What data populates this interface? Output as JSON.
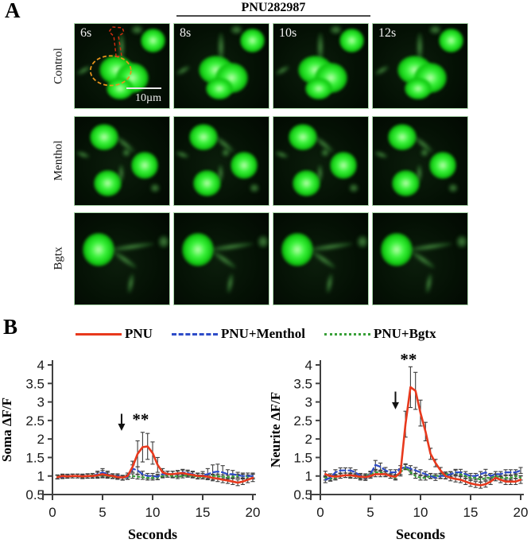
{
  "panel_a": {
    "label": "A",
    "header": "PNU282987",
    "row_labels": [
      "Control",
      "Menthol",
      "Bgtx"
    ],
    "time_labels": [
      "6s",
      "8s",
      "10s",
      "12s"
    ],
    "scale_bar_label": "10µm"
  },
  "panel_b": {
    "label": "B",
    "legend": [
      {
        "label": "PNU",
        "color": "#e8391d",
        "dash": "solid"
      },
      {
        "label": "PNU+Menthol",
        "color": "#2e4cc8",
        "dash": "dashed"
      },
      {
        "label": "PNU+Bgtx",
        "color": "#38a038",
        "dash": "dotted"
      }
    ]
  },
  "colors": {
    "error_bar": "#3c3c3c",
    "axis": "#404040",
    "annotation": "#111111"
  },
  "chart_data": [
    {
      "type": "line",
      "title": "",
      "ylabel": "Soma ΔF/F",
      "xlabel": "Seconds",
      "xlim": [
        0,
        20
      ],
      "ylim": [
        0.5,
        4
      ],
      "xticks": [
        0,
        5,
        10,
        15,
        20
      ],
      "yticks": [
        0.5,
        1,
        1.5,
        2,
        2.5,
        3,
        3.5,
        4
      ],
      "grid": false,
      "legend_position": "top",
      "annotation": {
        "arrow_x": 6.9,
        "arrow_from": 2.68,
        "arrow_to": 2.22,
        "sig": "**",
        "sig_x": 8.8,
        "sig_y": 2.38
      },
      "x": [
        0.5,
        1,
        1.5,
        2,
        2.5,
        3,
        3.5,
        4,
        4.5,
        5,
        5.5,
        6,
        6.5,
        7,
        7.5,
        8,
        8.5,
        9,
        9.5,
        10,
        10.5,
        11,
        11.5,
        12,
        12.5,
        13,
        13.5,
        14,
        14.5,
        15,
        15.5,
        16,
        16.5,
        17,
        17.5,
        18,
        18.5,
        19,
        19.5,
        20
      ],
      "series": [
        {
          "name": "PNU",
          "color": "#e8391d",
          "dash": "solid",
          "values": [
            0.97,
            1.0,
            0.99,
            1.0,
            1.0,
            0.99,
            1.0,
            1.0,
            1.02,
            1.05,
            1.02,
            1.0,
            0.97,
            0.96,
            1.0,
            1.25,
            1.6,
            1.78,
            1.8,
            1.62,
            1.3,
            1.1,
            1.05,
            1.05,
            1.07,
            1.08,
            1.05,
            1.03,
            1.0,
            1.0,
            0.98,
            0.95,
            0.93,
            0.9,
            0.88,
            0.85,
            0.82,
            0.85,
            0.9,
            0.95
          ],
          "errors": [
            0.05,
            0.05,
            0.05,
            0.05,
            0.05,
            0.06,
            0.06,
            0.06,
            0.08,
            0.1,
            0.08,
            0.06,
            0.06,
            0.06,
            0.08,
            0.15,
            0.35,
            0.4,
            0.35,
            0.3,
            0.2,
            0.1,
            0.08,
            0.08,
            0.08,
            0.08,
            0.08,
            0.08,
            0.07,
            0.07,
            0.07,
            0.08,
            0.08,
            0.08,
            0.08,
            0.08,
            0.08,
            0.08,
            0.08,
            0.1
          ]
        },
        {
          "name": "PNU+Menthol",
          "color": "#2e4cc8",
          "dash": "dashed",
          "values": [
            0.97,
            0.98,
            1.0,
            1.0,
            1.0,
            1.0,
            1.0,
            1.0,
            1.05,
            1.1,
            1.05,
            1.0,
            1.0,
            0.95,
            0.97,
            1.2,
            1.15,
            1.05,
            1.0,
            1.0,
            0.98,
            1.05,
            1.05,
            1.05,
            1.05,
            1.1,
            1.08,
            1.05,
            1.0,
            1.02,
            1.05,
            1.1,
            1.12,
            1.1,
            1.05,
            1.05,
            1.02,
            1.0,
            1.0,
            1.0
          ],
          "errors": [
            0.05,
            0.05,
            0.05,
            0.05,
            0.05,
            0.05,
            0.06,
            0.06,
            0.08,
            0.1,
            0.08,
            0.06,
            0.06,
            0.06,
            0.06,
            0.1,
            0.1,
            0.08,
            0.07,
            0.07,
            0.07,
            0.08,
            0.08,
            0.08,
            0.08,
            0.08,
            0.08,
            0.08,
            0.08,
            0.1,
            0.15,
            0.2,
            0.2,
            0.18,
            0.12,
            0.1,
            0.08,
            0.08,
            0.08,
            0.08
          ]
        },
        {
          "name": "PNU+Bgtx",
          "color": "#38a038",
          "dash": "dotted",
          "values": [
            0.98,
            1.0,
            0.99,
            1.0,
            1.0,
            0.98,
            1.0,
            1.02,
            1.0,
            1.03,
            1.0,
            0.98,
            0.97,
            0.95,
            0.97,
            1.0,
            0.98,
            0.97,
            0.95,
            0.95,
            0.96,
            1.0,
            1.02,
            1.0,
            0.98,
            1.0,
            1.02,
            1.0,
            0.98,
            0.97,
            0.98,
            1.0,
            1.0,
            0.98,
            0.97,
            0.98,
            1.0,
            1.0,
            0.98,
            1.0
          ],
          "errors": [
            0.05,
            0.05,
            0.05,
            0.05,
            0.05,
            0.05,
            0.05,
            0.05,
            0.05,
            0.06,
            0.05,
            0.05,
            0.05,
            0.06,
            0.06,
            0.06,
            0.06,
            0.06,
            0.06,
            0.06,
            0.06,
            0.05,
            0.05,
            0.05,
            0.05,
            0.05,
            0.05,
            0.05,
            0.05,
            0.05,
            0.05,
            0.05,
            0.05,
            0.05,
            0.05,
            0.05,
            0.05,
            0.05,
            0.05,
            0.05
          ]
        }
      ]
    },
    {
      "type": "line",
      "title": "",
      "ylabel": "Neurite ΔF/F",
      "xlabel": "Seconds",
      "xlim": [
        0,
        20
      ],
      "ylim": [
        0.5,
        4
      ],
      "xticks": [
        0,
        5,
        10,
        15,
        20
      ],
      "yticks": [
        0.5,
        1,
        1.5,
        2,
        2.5,
        3,
        3.5,
        4
      ],
      "grid": false,
      "legend_position": "top",
      "annotation": {
        "arrow_x": 7.5,
        "arrow_from": 3.28,
        "arrow_to": 2.8,
        "sig": "**",
        "sig_x": 8.8,
        "sig_y": 4.0
      },
      "x": [
        0.5,
        1,
        1.5,
        2,
        2.5,
        3,
        3.5,
        4,
        4.5,
        5,
        5.5,
        6,
        6.5,
        7,
        7.5,
        8,
        8.5,
        9,
        9.5,
        10,
        10.5,
        11,
        11.5,
        12,
        12.5,
        13,
        13.5,
        14,
        14.5,
        15,
        15.5,
        16,
        16.5,
        17,
        17.5,
        18,
        18.5,
        19,
        19.5,
        20
      ],
      "series": [
        {
          "name": "PNU",
          "color": "#e8391d",
          "dash": "solid",
          "values": [
            1.05,
            1.0,
            0.98,
            1.0,
            1.02,
            1.02,
            1.0,
            0.98,
            0.97,
            1.0,
            1.05,
            1.05,
            1.05,
            1.0,
            0.98,
            1.1,
            2.4,
            3.4,
            3.3,
            2.7,
            2.2,
            1.6,
            1.35,
            1.15,
            1.0,
            0.95,
            0.92,
            0.9,
            0.85,
            0.8,
            0.77,
            0.75,
            0.78,
            0.85,
            0.95,
            0.9,
            0.85,
            0.85,
            0.85,
            0.9
          ],
          "errors": [
            0.08,
            0.06,
            0.06,
            0.06,
            0.06,
            0.06,
            0.06,
            0.06,
            0.06,
            0.06,
            0.07,
            0.07,
            0.07,
            0.06,
            0.06,
            0.1,
            0.35,
            0.55,
            0.5,
            0.35,
            0.25,
            0.15,
            0.1,
            0.08,
            0.08,
            0.08,
            0.08,
            0.08,
            0.08,
            0.08,
            0.08,
            0.08,
            0.08,
            0.08,
            0.08,
            0.08,
            0.08,
            0.08,
            0.08,
            0.1
          ]
        },
        {
          "name": "PNU+Menthol",
          "color": "#2e4cc8",
          "dash": "dashed",
          "values": [
            0.9,
            0.95,
            1.1,
            1.15,
            1.15,
            1.15,
            1.1,
            1.0,
            0.95,
            1.05,
            1.3,
            1.25,
            1.15,
            1.1,
            1.1,
            1.2,
            1.25,
            1.2,
            1.15,
            1.1,
            1.05,
            1.0,
            0.95,
            1.0,
            1.0,
            1.05,
            1.1,
            1.1,
            1.05,
            1.0,
            1.0,
            1.05,
            1.1,
            1.0,
            1.05,
            1.05,
            1.1,
            1.1,
            1.1,
            1.15
          ],
          "errors": [
            0.08,
            0.07,
            0.07,
            0.07,
            0.07,
            0.07,
            0.07,
            0.07,
            0.07,
            0.08,
            0.12,
            0.1,
            0.08,
            0.07,
            0.07,
            0.08,
            0.08,
            0.08,
            0.08,
            0.07,
            0.07,
            0.07,
            0.07,
            0.07,
            0.07,
            0.07,
            0.08,
            0.08,
            0.07,
            0.07,
            0.07,
            0.07,
            0.08,
            0.07,
            0.07,
            0.07,
            0.07,
            0.07,
            0.07,
            0.08
          ]
        },
        {
          "name": "PNU+Bgtx",
          "color": "#38a038",
          "dash": "dotted",
          "values": [
            0.95,
            0.92,
            0.95,
            1.0,
            1.02,
            1.0,
            1.0,
            0.95,
            1.0,
            1.05,
            1.1,
            1.1,
            1.05,
            1.0,
            0.95,
            1.1,
            1.25,
            1.1,
            1.0,
            0.95,
            0.95,
            1.0,
            1.0,
            1.0,
            1.05,
            1.05,
            1.1,
            1.05,
            1.0,
            0.95,
            0.95,
            0.9,
            0.95,
            0.95,
            1.0,
            0.95,
            0.95,
            0.95,
            1.0,
            0.95
          ],
          "errors": [
            0.06,
            0.06,
            0.06,
            0.06,
            0.06,
            0.06,
            0.06,
            0.06,
            0.06,
            0.06,
            0.06,
            0.06,
            0.06,
            0.06,
            0.06,
            0.06,
            0.06,
            0.06,
            0.06,
            0.06,
            0.06,
            0.06,
            0.06,
            0.06,
            0.06,
            0.06,
            0.06,
            0.06,
            0.06,
            0.06,
            0.06,
            0.06,
            0.06,
            0.06,
            0.06,
            0.06,
            0.06,
            0.06,
            0.06,
            0.06
          ]
        }
      ]
    }
  ]
}
